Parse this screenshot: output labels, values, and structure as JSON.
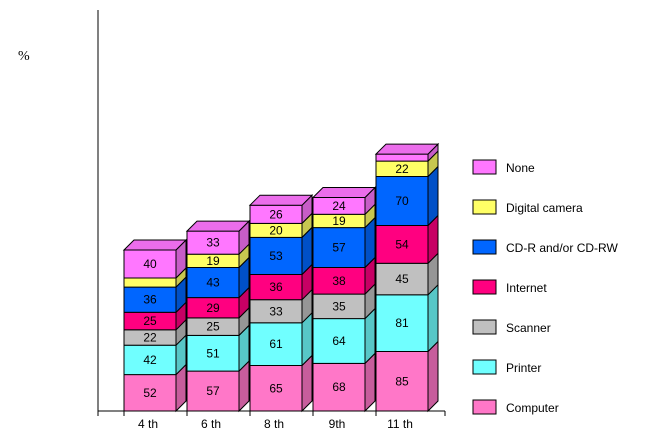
{
  "chart_data": {
    "type": "bar",
    "stacked": true,
    "three_d": true,
    "ylabel": "%",
    "categories": [
      "4 th",
      "6 th",
      "8 th",
      "9th",
      "11 th"
    ],
    "series": [
      {
        "name": "Computer",
        "color": "#ff77c8",
        "values": [
          52,
          57,
          65,
          68,
          85
        ],
        "labels": [
          "52",
          "57",
          "65",
          "68",
          "85"
        ]
      },
      {
        "name": "Printer",
        "color": "#70ffff",
        "values": [
          42,
          51,
          61,
          64,
          81
        ],
        "labels": [
          "42",
          "51",
          "61",
          "64",
          "81"
        ]
      },
      {
        "name": "Scanner",
        "color": "#c0c0c0",
        "values": [
          22,
          25,
          33,
          35,
          45
        ],
        "labels": [
          "22",
          "25",
          "33",
          "35",
          "45"
        ]
      },
      {
        "name": "Internet",
        "color": "#ff0080",
        "values": [
          25,
          29,
          36,
          38,
          54
        ],
        "labels": [
          "25",
          "29",
          "36",
          "38",
          "54"
        ]
      },
      {
        "name": "CD-R and/or CD-RW",
        "color": "#0066ff",
        "values": [
          36,
          43,
          53,
          57,
          70
        ],
        "labels": [
          "36",
          "43",
          "53",
          "57",
          "70"
        ]
      },
      {
        "name": "Digital camera",
        "color": "#ffff66",
        "values": [
          13,
          19,
          20,
          19,
          22
        ],
        "labels": [
          "",
          "19",
          "20",
          "19",
          "22"
        ]
      },
      {
        "name": "None",
        "color": "#ff77ff",
        "values": [
          40,
          33,
          26,
          24,
          10
        ],
        "labels": [
          "40",
          "33",
          "26",
          "24",
          ""
        ]
      }
    ],
    "legend_position": "right",
    "grid": false
  }
}
